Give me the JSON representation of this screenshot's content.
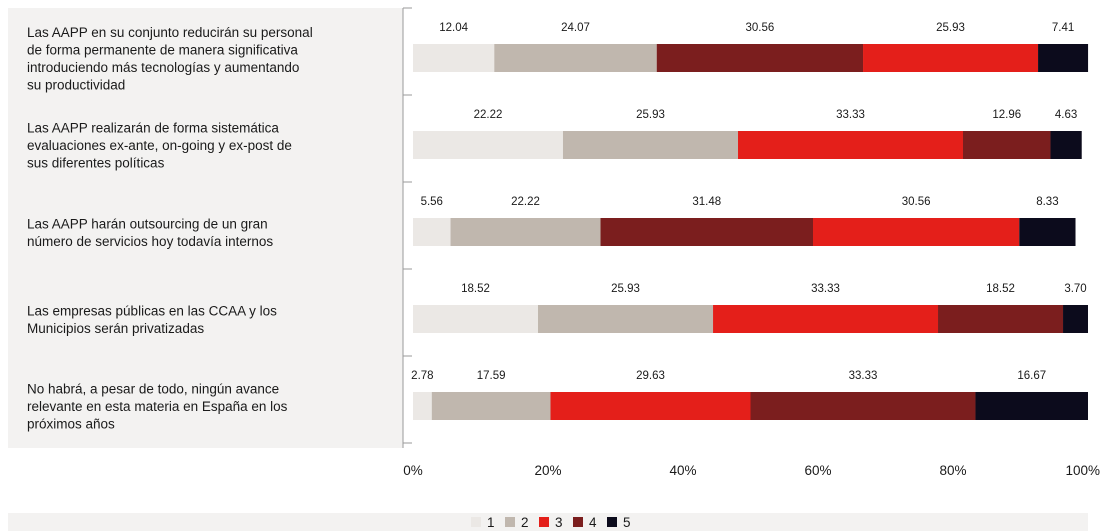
{
  "chart_data": {
    "type": "bar",
    "orientation": "horizontal",
    "stacked": true,
    "categories": [
      [
        "Las AAPP en su conjunto reducirán su personal",
        "de forma permanente de manera significativa",
        "introduciendo más tecnologías y aumentando",
        "su productividad"
      ],
      [
        "Las AAPP realizarán de forma sistemática",
        "evaluaciones ex-ante, on-going y ex-post de",
        "sus diferentes políticas"
      ],
      [
        "Las AAPP harán outsourcing de un gran",
        "número de servicios hoy todavía internos"
      ],
      [
        "Las empresas públicas en las CCAA y los",
        "Municipios serán privatizadas"
      ],
      [
        "No habrá, a pesar de todo, ningún avance",
        "relevante en esta materia en España en los",
        "próximos años"
      ]
    ],
    "series": [
      {
        "name": "1",
        "color": "#ebe8e5",
        "values": [
          12.04,
          22.22,
          5.56,
          18.52,
          2.78
        ]
      },
      {
        "name": "2",
        "color": "#c0b7ae",
        "values": [
          24.07,
          25.93,
          22.22,
          25.93,
          17.59
        ]
      },
      {
        "name": "3",
        "color": "#e41f1a",
        "values": [
          25.93,
          33.33,
          30.56,
          33.33,
          29.63
        ]
      },
      {
        "name": "4",
        "color": "#7b1e1e",
        "values": [
          30.56,
          12.96,
          31.48,
          18.52,
          33.33
        ]
      },
      {
        "name": "5",
        "color": "#0c0b1c",
        "values": [
          7.41,
          4.63,
          8.33,
          3.7,
          16.67
        ]
      }
    ],
    "segment_order": [
      [
        "1",
        "2",
        "4",
        "3",
        "5"
      ],
      [
        "1",
        "2",
        "3",
        "4",
        "5"
      ],
      [
        "1",
        "2",
        "4",
        "3",
        "5"
      ],
      [
        "1",
        "2",
        "3",
        "4",
        "5"
      ],
      [
        "1",
        "2",
        "3",
        "4",
        "5"
      ]
    ],
    "xlim": [
      0,
      100
    ],
    "xticks": [
      "0%",
      "20%",
      "40%",
      "60%",
      "80%",
      "100%"
    ],
    "legend_position": "bottom",
    "grid": false,
    "label_panel_color": "#f3f2f1",
    "legend_bar_color": "#f3f2f1"
  }
}
